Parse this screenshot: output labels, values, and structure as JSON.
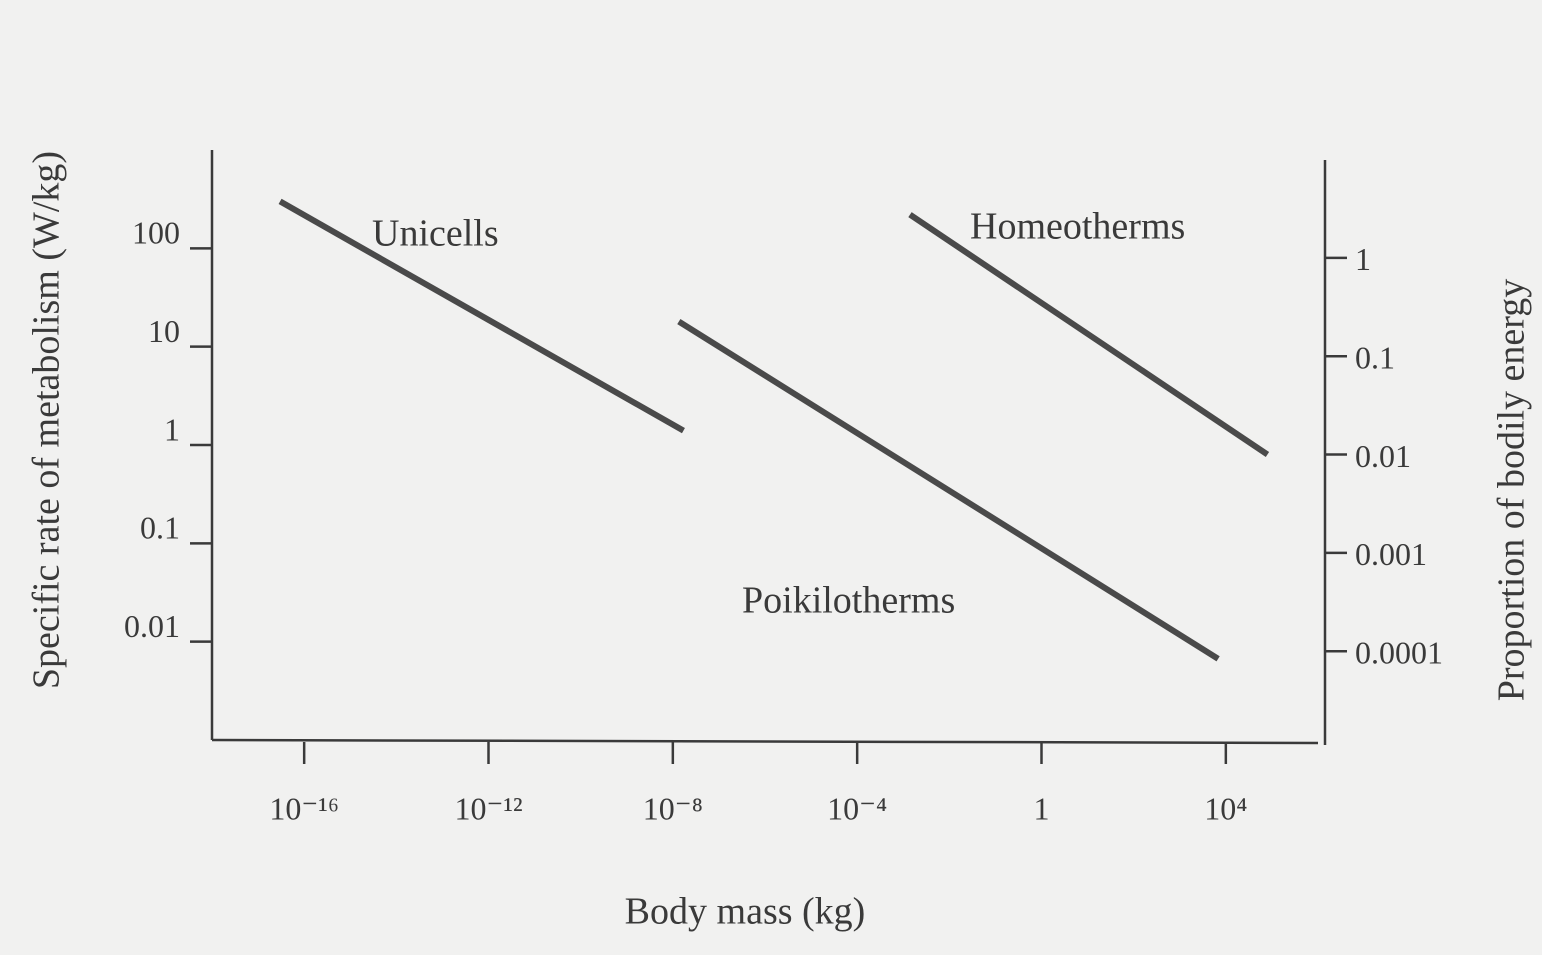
{
  "chart_data": {
    "type": "line",
    "xlabel": "Body mass (kg)",
    "ylabel": "Specific rate of metabolism (W/kg)",
    "y2label": "Proportion of bodily energy",
    "xscale": "log",
    "yscale": "log",
    "y2scale": "log",
    "xlim": [
      1e-18,
      1000000.0
    ],
    "xticks": [
      {
        "value": 1e-16,
        "label": "10⁻¹⁶"
      },
      {
        "value": 1e-12,
        "label": "10⁻¹²"
      },
      {
        "value": 1e-08,
        "label": "10⁻⁸"
      },
      {
        "value": 0.0001,
        "label": "10⁻⁴"
      },
      1,
      {
        "value": 10000,
        "label": "10⁴"
      }
    ],
    "ylim": [
      0.001,
      1000
    ],
    "yticks": [
      100,
      10,
      1,
      0.1,
      0.01
    ],
    "y2lim": [
      1.25e-05,
      12.5
    ],
    "y2ticks": [
      1,
      0.1,
      0.01,
      0.001,
      0.0001
    ],
    "series": [
      {
        "name": "Unicells",
        "color": "#4a4a4a",
        "x": [
          3e-17,
          1.7e-08
        ],
        "values": [
          300,
          1.4
        ]
      },
      {
        "name": "Poikilotherms",
        "color": "#4a4a4a",
        "x": [
          1.35e-08,
          6800
        ],
        "values": [
          18,
          0.0067
        ]
      },
      {
        "name": "Homeotherms",
        "color": "#4a4a4a",
        "x": [
          0.0014,
          80000
        ],
        "values": [
          220,
          0.8
        ]
      }
    ]
  }
}
